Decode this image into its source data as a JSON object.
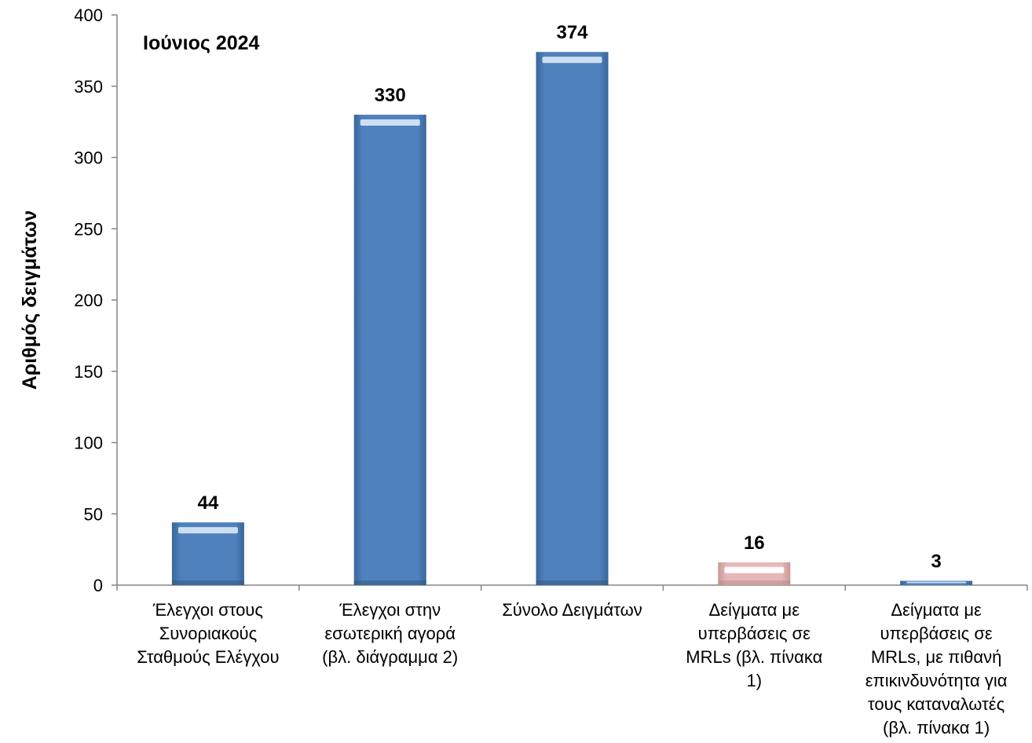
{
  "chart_data": {
    "type": "bar",
    "annotation": "Ιούνιος 2024",
    "ylabel": "Αριθμός δειγμάτων",
    "xlabel": "",
    "ylim": [
      0,
      400
    ],
    "yticks": [
      0,
      50,
      100,
      150,
      200,
      250,
      300,
      350,
      400
    ],
    "categories": [
      [
        "Έλεγχοι στους",
        "Συνοριακούς",
        "Σταθμούς Ελέγχου"
      ],
      [
        "Έλεγχοι στην",
        "εσωτερική αγορά",
        "(βλ. διάγραμμα 2)"
      ],
      [
        "Σύνολο Δειγμάτων"
      ],
      [
        "Δείγματα με",
        "υπερβάσεις σε",
        "MRLs (βλ. πίνακα",
        "1)"
      ],
      [
        "Δείγματα με",
        "υπερβάσεις σε",
        "MRLs, με πιθανή",
        "επικινδυνότητα για",
        "τους καταναλωτές",
        "(βλ. πίνακα 1)"
      ]
    ],
    "values": [
      44,
      330,
      374,
      16,
      3
    ],
    "bar_colors": [
      "#4F81BD",
      "#4F81BD",
      "#4F81BD",
      "#E6B9B8",
      "#4F81BD"
    ],
    "grid": false,
    "legend": "none"
  }
}
